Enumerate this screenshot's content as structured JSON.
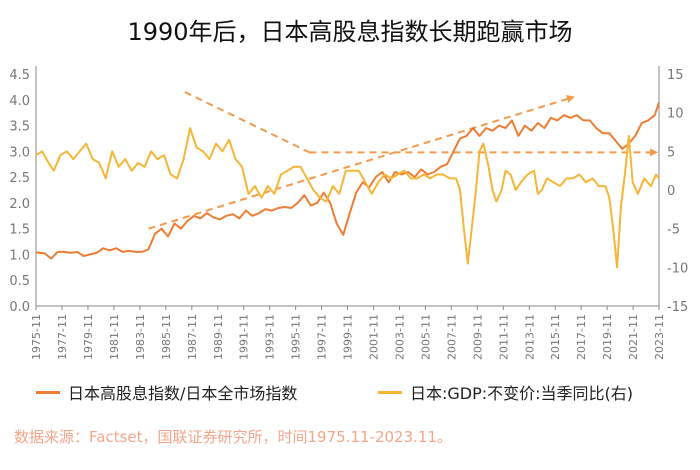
{
  "title": "1990年后，日本高股息指数长期跑赢市场",
  "source": "数据来源：Factset，国联证券研究所，时间1975.11-2023.11。",
  "colors": {
    "ratio": "#ee7d33",
    "gdp": "#f6b537",
    "trend": "#f29a4a",
    "axis": "#888888"
  },
  "chart_data": {
    "type": "line",
    "title": "1990年后，日本高股息指数长期跑赢市场",
    "x_tick_labels": [
      "1975-11",
      "1977-11",
      "1979-11",
      "1981-11",
      "1983-11",
      "1985-11",
      "1987-11",
      "1989-11",
      "1991-11",
      "1993-11",
      "1995-11",
      "1997-11",
      "1999-11",
      "2001-11",
      "2003-11",
      "2005-11",
      "2007-11",
      "2009-11",
      "2011-11",
      "2013-11",
      "2015-11",
      "2017-11",
      "2019-11",
      "2021-11",
      "2023-11"
    ],
    "x_range": [
      1975.83,
      2023.83
    ],
    "y_left": {
      "range": [
        0,
        4.5
      ],
      "ticks": [
        "0.0",
        "0.5",
        "1.0",
        "1.5",
        "2.0",
        "2.5",
        "3.0",
        "3.5",
        "4.0",
        "4.5"
      ]
    },
    "y_right": {
      "range": [
        -15,
        15
      ],
      "ticks": [
        "-15",
        "-10",
        "-5",
        "0",
        "5",
        "10",
        "15"
      ]
    },
    "legend_position": "bottom",
    "series": [
      {
        "name": "日本高股息指数/日本全市场指数",
        "axis": "left",
        "x": [
          1975.83,
          1976.5,
          1977,
          1977.5,
          1978,
          1978.5,
          1979,
          1979.5,
          1980,
          1980.5,
          1981,
          1981.5,
          1982,
          1982.5,
          1983,
          1983.5,
          1984,
          1984.5,
          1985,
          1985.5,
          1986,
          1986.5,
          1987,
          1987.5,
          1988,
          1988.5,
          1989,
          1989.5,
          1990,
          1990.5,
          1991,
          1991.5,
          1992,
          1992.5,
          1993,
          1993.5,
          1994,
          1994.5,
          1995,
          1995.5,
          1996,
          1996.5,
          1997,
          1997.5,
          1998,
          1998.5,
          1999,
          1999.5,
          2000,
          2000.5,
          2001,
          2001.5,
          2002,
          2002.5,
          2003,
          2003.5,
          2004,
          2004.5,
          2005,
          2005.5,
          2006,
          2006.5,
          2007,
          2007.5,
          2008,
          2008.5,
          2009,
          2009.5,
          2010,
          2010.5,
          2011,
          2011.5,
          2012,
          2012.5,
          2013,
          2013.5,
          2014,
          2014.5,
          2015,
          2015.5,
          2016,
          2016.5,
          2017,
          2017.5,
          2018,
          2018.5,
          2019,
          2019.5,
          2020,
          2020.5,
          2021,
          2021.5,
          2022,
          2022.5,
          2023,
          2023.5,
          2023.83
        ],
        "values": [
          1.04,
          1.02,
          0.92,
          1.05,
          1.05,
          1.03,
          1.05,
          0.97,
          1.0,
          1.03,
          1.12,
          1.08,
          1.12,
          1.05,
          1.07,
          1.05,
          1.05,
          1.1,
          1.4,
          1.5,
          1.35,
          1.6,
          1.5,
          1.65,
          1.75,
          1.7,
          1.8,
          1.72,
          1.68,
          1.75,
          1.78,
          1.7,
          1.85,
          1.75,
          1.8,
          1.88,
          1.85,
          1.9,
          1.92,
          1.9,
          2.0,
          2.15,
          1.95,
          2.0,
          2.2,
          2.0,
          1.6,
          1.38,
          1.8,
          2.2,
          2.4,
          2.3,
          2.5,
          2.6,
          2.4,
          2.6,
          2.55,
          2.6,
          2.5,
          2.65,
          2.55,
          2.6,
          2.7,
          2.75,
          3.0,
          3.25,
          3.3,
          3.45,
          3.3,
          3.45,
          3.4,
          3.5,
          3.45,
          3.6,
          3.3,
          3.5,
          3.4,
          3.55,
          3.45,
          3.65,
          3.6,
          3.7,
          3.65,
          3.7,
          3.6,
          3.6,
          3.45,
          3.35,
          3.35,
          3.2,
          3.05,
          3.15,
          3.3,
          3.55,
          3.6,
          3.7,
          3.95
        ]
      },
      {
        "name": "日本:GDP:不变价:当季同比(右)",
        "axis": "right",
        "x": [
          1975.83,
          1976.3,
          1976.8,
          1977.2,
          1977.7,
          1978.2,
          1978.7,
          1979.2,
          1979.7,
          1980.2,
          1980.7,
          1981.2,
          1981.7,
          1982.2,
          1982.7,
          1983.2,
          1983.7,
          1984.2,
          1984.7,
          1985.2,
          1985.7,
          1986.2,
          1986.7,
          1987.2,
          1987.7,
          1988.2,
          1988.7,
          1989.2,
          1989.7,
          1990.2,
          1990.7,
          1991.2,
          1991.7,
          1992.2,
          1992.7,
          1993.2,
          1993.7,
          1994.2,
          1994.7,
          1995.2,
          1995.7,
          1996.2,
          1996.7,
          1997.2,
          1997.7,
          1998.2,
          1998.7,
          1999.2,
          1999.7,
          2000.2,
          2000.7,
          2001.2,
          2001.7,
          2002.2,
          2002.7,
          2003.2,
          2003.7,
          2004.2,
          2004.7,
          2005.2,
          2005.7,
          2006.2,
          2006.7,
          2007.2,
          2007.7,
          2008.2,
          2008.5,
          2008.8,
          2009.1,
          2009.4,
          2009.7,
          2010.0,
          2010.3,
          2010.7,
          2011.0,
          2011.3,
          2011.7,
          2012.0,
          2012.4,
          2012.8,
          2013.2,
          2013.7,
          2014.2,
          2014.5,
          2014.8,
          2015.2,
          2015.7,
          2016.2,
          2016.7,
          2017.2,
          2017.7,
          2018.2,
          2018.7,
          2019.2,
          2019.7,
          2020.0,
          2020.3,
          2020.6,
          2020.9,
          2021.2,
          2021.5,
          2021.8,
          2022.2,
          2022.7,
          2023.2,
          2023.6,
          2023.83
        ],
        "values": [
          4.5,
          5,
          3.5,
          2.5,
          4.5,
          5,
          4,
          5,
          6,
          4,
          3.5,
          1.5,
          5,
          3,
          4,
          2.5,
          3.5,
          3,
          5,
          4,
          4.5,
          2,
          1.5,
          4,
          8,
          5.5,
          5,
          4,
          6,
          5,
          6.5,
          4,
          3,
          -0.5,
          0.5,
          -1,
          0.5,
          -0.5,
          2,
          2.5,
          3,
          3,
          1.5,
          0,
          -1,
          -1.5,
          0.5,
          -0.5,
          2.5,
          2.5,
          2.5,
          1,
          -0.5,
          1,
          2,
          1.5,
          2,
          2.5,
          1.5,
          1.5,
          2,
          1.5,
          2,
          2,
          1.5,
          1.5,
          0,
          -5,
          -9.5,
          -5,
          -0.5,
          5,
          6,
          3,
          0,
          -1.5,
          0,
          2.5,
          2,
          0,
          1,
          2,
          2.5,
          -0.5,
          0,
          1.5,
          1,
          0.5,
          1.5,
          1.5,
          2,
          1,
          1.5,
          0.5,
          0.5,
          -1,
          -5,
          -10,
          -2,
          2,
          7,
          1,
          -0.5,
          1.5,
          0.5,
          2,
          1.5
        ]
      }
    ],
    "trend_lines": [
      {
        "name": "down",
        "from": [
          1987.3,
          4.15
        ],
        "to": [
          1996.9,
          2.98
        ]
      },
      {
        "name": "flat",
        "from": [
          1996.9,
          2.98
        ],
        "to": [
          2023.6,
          2.98
        ]
      },
      {
        "name": "up",
        "from": [
          1984.5,
          1.5
        ],
        "to": [
          2017.2,
          4.05
        ]
      }
    ]
  },
  "legend": {
    "item1": "日本高股息指数/日本全市场指数",
    "item2": "日本:GDP:不变价:当季同比(右)"
  }
}
